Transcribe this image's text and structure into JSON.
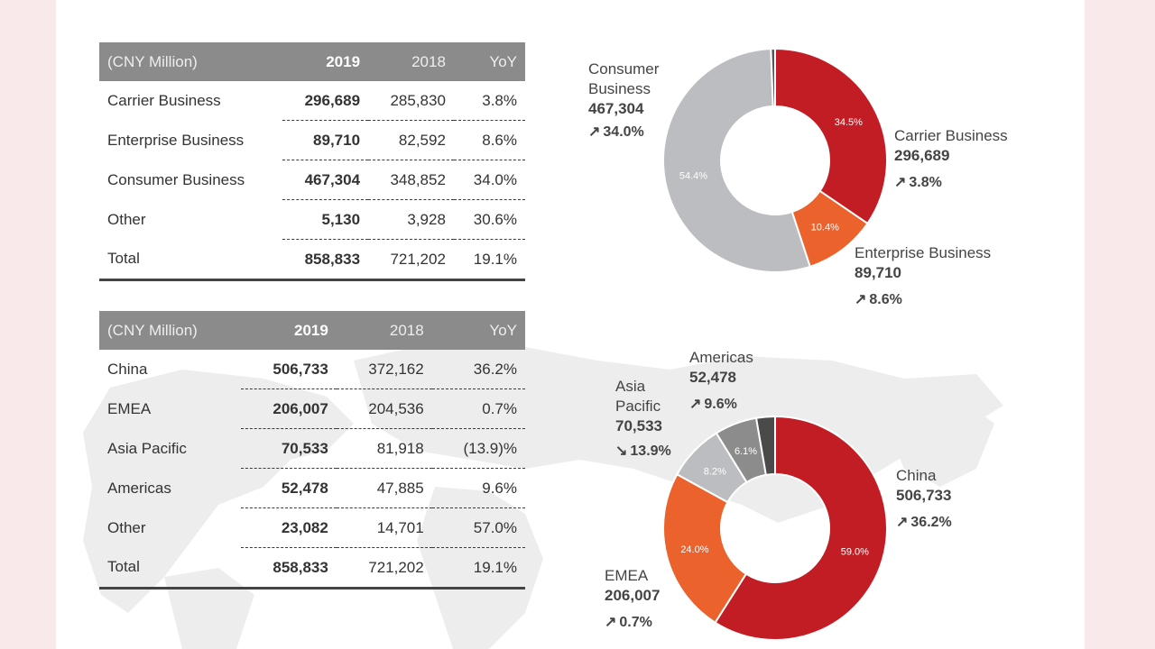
{
  "business_table": {
    "headers": [
      "(CNY Million)",
      "2019",
      "2018",
      "YoY"
    ],
    "rows": [
      [
        "Carrier Business",
        "296,689",
        "285,830",
        "3.8%"
      ],
      [
        "Enterprise Business",
        "89,710",
        "82,592",
        "8.6%"
      ],
      [
        "Consumer Business",
        "467,304",
        "348,852",
        "34.0%"
      ],
      [
        "Other",
        "5,130",
        "3,928",
        "30.6%"
      ],
      [
        "Total",
        "858,833",
        "721,202",
        "19.1%"
      ]
    ]
  },
  "region_table": {
    "headers": [
      "(CNY Million)",
      "2019",
      "2018",
      "YoY"
    ],
    "rows": [
      [
        "China",
        "506,733",
        "372,162",
        "36.2%"
      ],
      [
        "EMEA",
        "206,007",
        "204,536",
        "0.7%"
      ],
      [
        "Asia Pacific",
        "70,533",
        "81,918",
        "(13.9)%"
      ],
      [
        "Americas",
        "52,478",
        "47,885",
        "9.6%"
      ],
      [
        "Other",
        "23,082",
        "14,701",
        "57.0%"
      ],
      [
        "Total",
        "858,833",
        "721,202",
        "19.1%"
      ]
    ]
  },
  "chart_data": [
    {
      "type": "pie",
      "title": "",
      "slices": [
        {
          "name": "Carrier Business",
          "share": 34.5,
          "share_label": "34.5%",
          "value_label": "296,689",
          "change": "3.8%",
          "direction": "up",
          "color": "#c21d24"
        },
        {
          "name": "Enterprise Business",
          "share": 10.4,
          "share_label": "10.4%",
          "value_label": "89,710",
          "change": "8.6%",
          "direction": "up",
          "color": "#ec622c"
        },
        {
          "name": "Consumer Business",
          "share": 54.4,
          "share_label": "54.4%",
          "value_label": "467,304",
          "change": "34.0%",
          "direction": "up",
          "color": "#bcbdc0"
        },
        {
          "name": "Other",
          "share": 0.6,
          "share_label": "",
          "value_label": "",
          "change": "",
          "direction": "",
          "color": "#555555"
        }
      ]
    },
    {
      "type": "pie",
      "title": "",
      "slices": [
        {
          "name": "China",
          "share": 59.0,
          "share_label": "59.0%",
          "value_label": "506,733",
          "change": "36.2%",
          "direction": "up",
          "color": "#c21d24"
        },
        {
          "name": "EMEA",
          "share": 24.0,
          "share_label": "24.0%",
          "value_label": "206,007",
          "change": "0.7%",
          "direction": "up",
          "color": "#ec622c"
        },
        {
          "name": "Asia Pacific",
          "share": 8.2,
          "share_label": "8.2%",
          "value_label": "70,533",
          "change": "13.9%",
          "direction": "down",
          "color": "#bcbdc0"
        },
        {
          "name": "Americas",
          "share": 6.1,
          "share_label": "6.1%",
          "value_label": "52,478",
          "change": "9.6%",
          "direction": "up",
          "color": "#8c8c8c"
        },
        {
          "name": "Other",
          "share": 2.7,
          "share_label": "",
          "value_label": "",
          "change": "",
          "direction": "",
          "color": "#4a4a4a"
        }
      ]
    }
  ],
  "labels": {
    "consumer": {
      "name_line1": "Consumer",
      "name_line2": "Business",
      "value": "467,304",
      "change": "34.0%",
      "arrow": "↗"
    },
    "carrier": {
      "name": "Carrier Business",
      "value": "296,689",
      "change": "3.8%",
      "arrow": "↗"
    },
    "enterprise": {
      "name": "Enterprise Business",
      "value": "89,710",
      "change": "8.6%",
      "arrow": "↗"
    },
    "americas": {
      "name": "Americas",
      "value": "52,478",
      "change": "9.6%",
      "arrow": "↗"
    },
    "asia": {
      "name_line1": "Asia",
      "name_line2": "Pacific",
      "value": "70,533",
      "change": "13.9%",
      "arrow": "↘"
    },
    "china": {
      "name": "China",
      "value": "506,733",
      "change": "36.2%",
      "arrow": "↗"
    },
    "emea": {
      "name": "EMEA",
      "value": "206,007",
      "change": "0.7%",
      "arrow": "↗"
    }
  }
}
